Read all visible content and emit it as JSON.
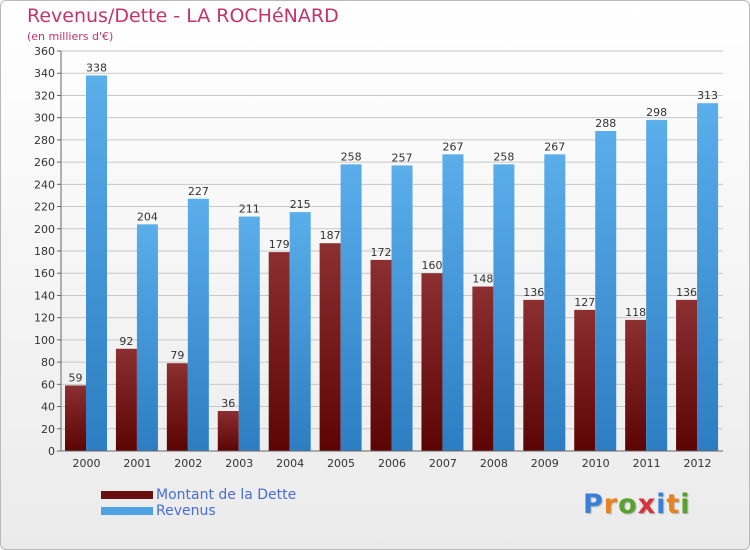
{
  "title": "Revenus/Dette - LA ROCHéNARD",
  "subtitle": "(en milliers d'€)",
  "logo": {
    "text": "Proxiti",
    "letter_colors": [
      "#3a7fd5",
      "#e8821e",
      "#5aa02c",
      "#d8333a",
      "#3a7fd5",
      "#e8821e",
      "#5aa02c"
    ]
  },
  "colors": {
    "dette_top": "#8b2f31",
    "dette_bottom": "#5c0404",
    "revenus_top": "#5aaeea",
    "revenus_bottom": "#2d7dc2",
    "grid": "#c8c8c8",
    "axis": "#666666"
  },
  "legend": [
    {
      "label": "Montant de la Dette",
      "color": "#6a0f0f"
    },
    {
      "label": "Revenus",
      "color": "#4ea3e4"
    }
  ],
  "chart_data": {
    "type": "bar",
    "title": "Revenus/Dette - LA ROCHéNARD",
    "subtitle": "(en milliers d'€)",
    "categories": [
      "2000",
      "2001",
      "2002",
      "2003",
      "2004",
      "2005",
      "2006",
      "2007",
      "2008",
      "2009",
      "2010",
      "2011",
      "2012"
    ],
    "series": [
      {
        "name": "Montant de la Dette",
        "values": [
          59,
          92,
          79,
          36,
          179,
          187,
          172,
          160,
          148,
          136,
          127,
          118,
          136
        ]
      },
      {
        "name": "Revenus",
        "values": [
          338,
          204,
          227,
          211,
          215,
          258,
          257,
          267,
          258,
          267,
          288,
          298,
          313
        ]
      }
    ],
    "ylim": [
      0,
      360
    ],
    "ytick_step": 20,
    "grid": true,
    "legend_position": "bottom-left"
  }
}
